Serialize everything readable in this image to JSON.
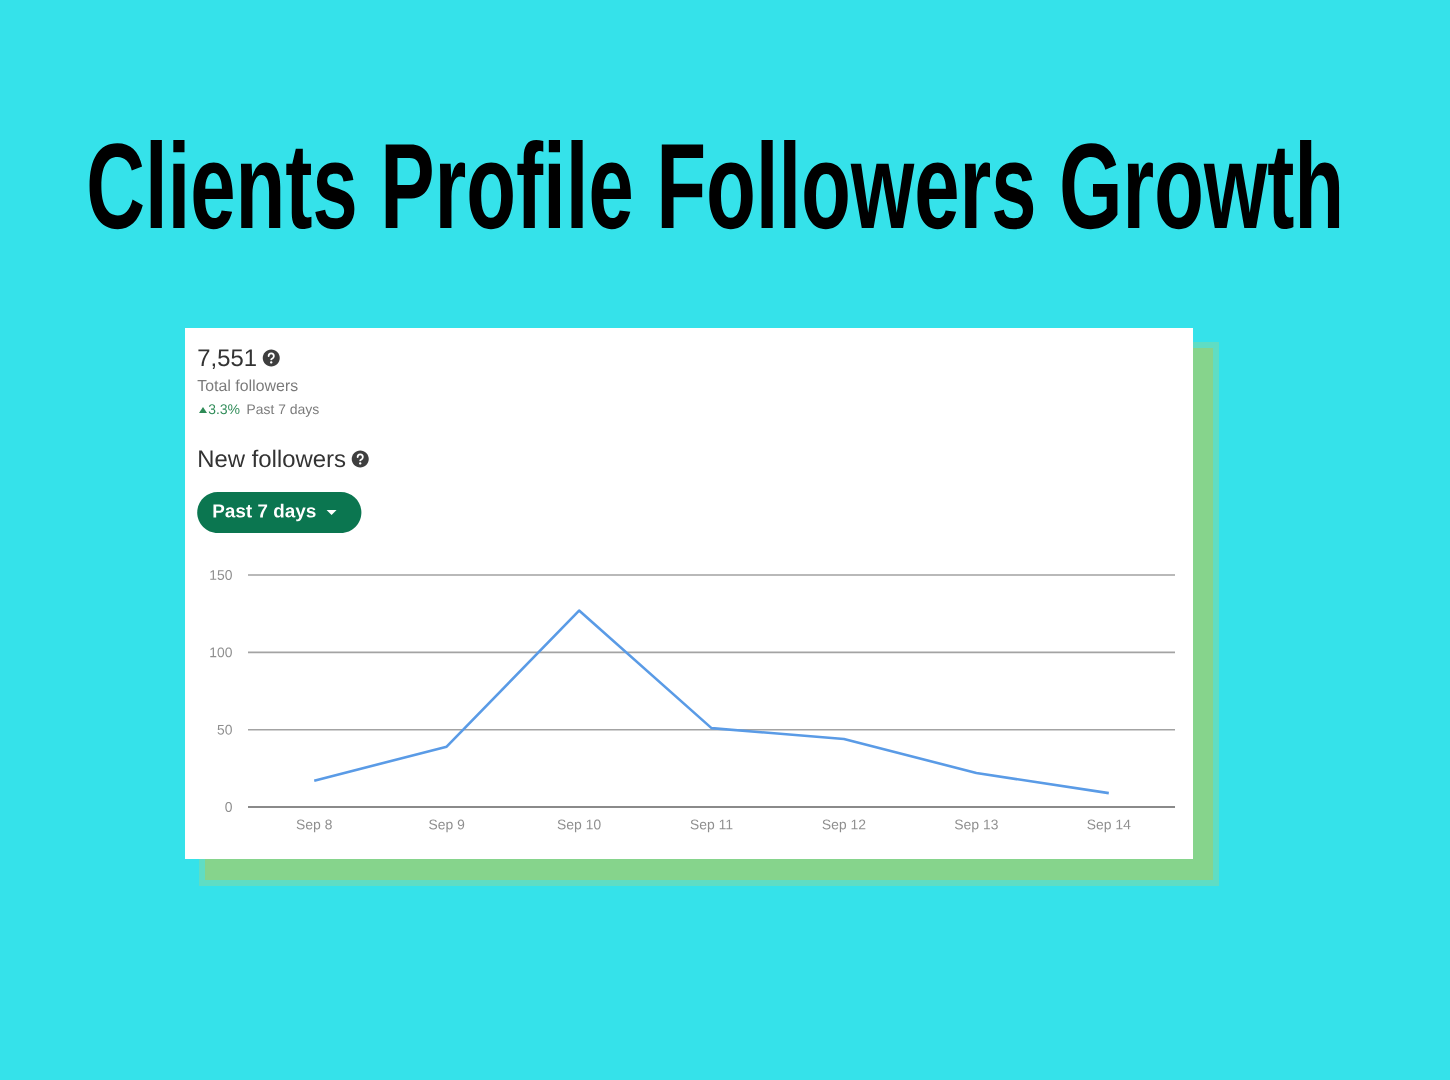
{
  "chart_data": {
    "type": "line",
    "title": "Clients Profile Followers Growth",
    "subtitle": "New followers",
    "categories": [
      "Sep 8",
      "Sep 9",
      "Sep 10",
      "Sep 11",
      "Sep 12",
      "Sep 13",
      "Sep 14"
    ],
    "series": [
      {
        "color": "#5a9be6",
        "values": [
          17,
          39,
          127,
          51,
          44,
          22,
          9
        ]
      }
    ],
    "ylim": [
      0,
      150
    ],
    "yticks": [
      0,
      50,
      100,
      150
    ],
    "grid": "y",
    "marker": "none",
    "line_style": "solid",
    "annotations": [
      "7,551",
      "Total followers",
      "3.3%",
      "Past 7 days",
      "Past 7 days"
    ]
  }
}
